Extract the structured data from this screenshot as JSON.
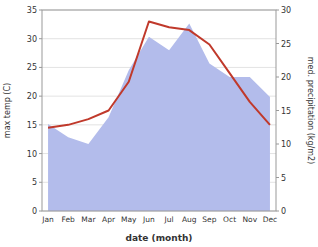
{
  "chart_data": {
    "type": "line",
    "categories": [
      "Jan",
      "Feb",
      "Mar",
      "Apr",
      "May",
      "Jun",
      "Jul",
      "Aug",
      "Sep",
      "Oct",
      "Nov",
      "Dec"
    ],
    "xlabel": "date (month)",
    "ylabel": "max temp (C)",
    "y2label": "med. precipitation (kg/m2)",
    "series": [
      {
        "type": "area",
        "axis": "y2",
        "color": "#b3bceb",
        "values": [
          13.0,
          11.0,
          10.0,
          14.0,
          21.0,
          26.0,
          24.0,
          28.0,
          22.0,
          20.0,
          20.0,
          17.0
        ]
      },
      {
        "type": "line",
        "color": "#c0392b",
        "values": [
          14.5,
          15.0,
          16.0,
          17.5,
          22.5,
          33.0,
          32.0,
          31.5,
          29.0,
          24.0,
          19.0,
          15.0
        ]
      }
    ],
    "ylim": [
      0,
      35
    ],
    "yticks": [
      0,
      5,
      10,
      15,
      20,
      25,
      30,
      35
    ],
    "y2lim": [
      0,
      30
    ],
    "y2ticks": [
      0,
      5,
      10,
      15,
      20,
      25,
      30
    ],
    "grid": true
  }
}
